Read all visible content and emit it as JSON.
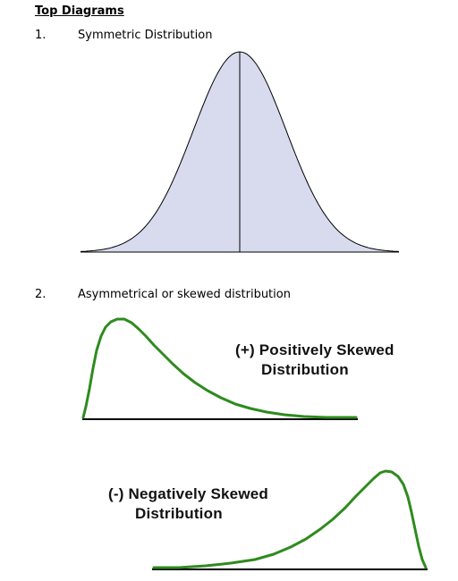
{
  "page": {
    "heading": "Top Diagrams"
  },
  "items": [
    {
      "number": "1.",
      "label": "Symmetric Distribution"
    },
    {
      "number": "2.",
      "label": "Asymmetrical or skewed distribution"
    }
  ],
  "skewed": {
    "positive": {
      "line1": "(+) Positively Skewed",
      "line2": "Distribution"
    },
    "negative": {
      "line1": "(-) Negatively Skewed",
      "line2": "Distribution"
    }
  },
  "colors": {
    "bell_fill": "#d8dbee",
    "bell_stroke": "#000000",
    "skew_curve": "#2e8b1e",
    "baseline": "#000000"
  }
}
